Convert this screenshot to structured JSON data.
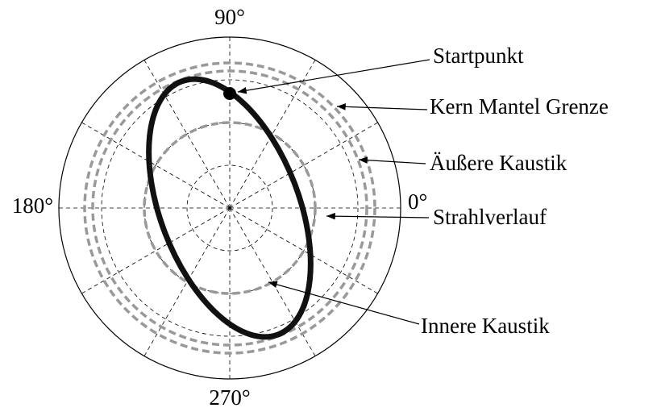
{
  "angle_labels": {
    "top": "90°",
    "right": "0°",
    "left": "180°",
    "bottom": "270°"
  },
  "annotations": [
    "Startpunkt",
    "Kern Mantel Grenze",
    "Äußere Kaustik",
    "Strahlverlauf",
    "Innere Kaustik"
  ]
}
